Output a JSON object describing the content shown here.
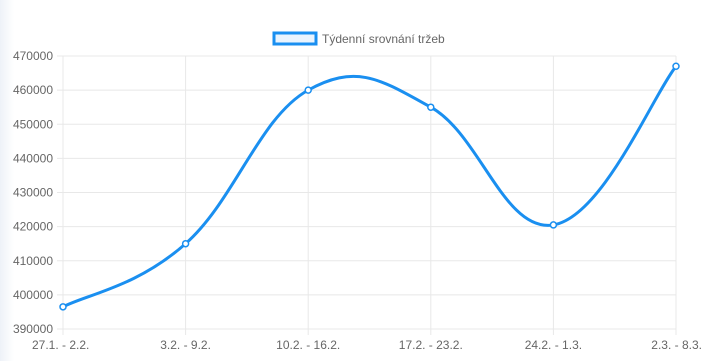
{
  "chart_data": {
    "type": "line",
    "title": "",
    "xlabel": "",
    "ylabel": "",
    "legend": {
      "position": "top-center",
      "label": "Týdenní srovnání tržeb"
    },
    "categories": [
      "27.1. - 2.2.",
      "3.2. - 9.2.",
      "10.2. - 16.2.",
      "17.2. - 23.2.",
      "24.2. - 1.3.",
      "2.3. - 8.3."
    ],
    "series": [
      {
        "name": "Týdenní srovnání tržeb",
        "values": [
          396500,
          415000,
          460000,
          455000,
          420500,
          467000
        ]
      }
    ],
    "ylim": [
      390000,
      470000
    ],
    "yticks": [
      "470000",
      "460000",
      "450000",
      "440000",
      "430000",
      "420000",
      "410000",
      "400000",
      "390000"
    ],
    "grid": true,
    "curve": "smooth",
    "colors": {
      "line": "#1a8ff0",
      "grid": "#e8e8e8",
      "tick_text": "#666666"
    }
  }
}
